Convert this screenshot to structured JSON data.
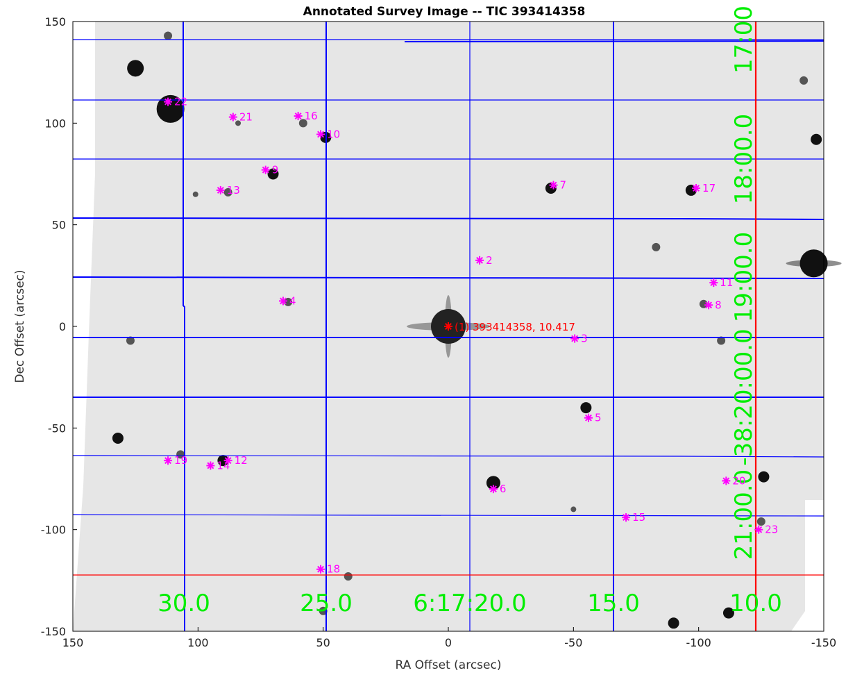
{
  "chart_data": {
    "type": "scatter",
    "title": "Annotated Survey Image -- TIC 393414358",
    "xlabel": "RA Offset (arcsec)",
    "ylabel": "Dec Offset (arcsec)",
    "xlim": [
      150,
      -150
    ],
    "ylim": [
      -150,
      150
    ],
    "x_ticks": [
      150,
      100,
      50,
      0,
      -50,
      -100,
      -150
    ],
    "x_tick_labels": [
      "150",
      "100",
      "50",
      "0",
      "-50",
      "-100",
      "-150"
    ],
    "y_ticks": [
      150,
      100,
      50,
      0,
      -50,
      -100,
      -150
    ],
    "y_tick_labels": [
      "150",
      "100",
      "50",
      "0",
      "-50",
      "-100",
      "-150"
    ],
    "grid": "RA/Dec coordinate grid overlay",
    "background": "grayscale survey image",
    "colors": {
      "target": "#ff0000",
      "neighbors": "#ff00ff",
      "grid_lines": "#0000ff",
      "grid_labels": "#00ee00",
      "reference_lines": "#ff0000"
    },
    "target": {
      "x": 0,
      "y": 0,
      "label": "(1) 393414358, 10.417"
    },
    "sources": [
      {
        "label": "2",
        "x": -12.5,
        "y": 32.5
      },
      {
        "label": "3",
        "x": -50.5,
        "y": -6
      },
      {
        "label": "4",
        "x": 66,
        "y": 12.5
      },
      {
        "label": "5",
        "x": -56,
        "y": -45
      },
      {
        "label": "6",
        "x": -18,
        "y": -80
      },
      {
        "label": "7",
        "x": -42,
        "y": 69.5
      },
      {
        "label": "8",
        "x": -104,
        "y": 10.5
      },
      {
        "label": "9",
        "x": 73,
        "y": 77
      },
      {
        "label": "10",
        "x": 51,
        "y": 94.5
      },
      {
        "label": "11",
        "x": -106,
        "y": 21.5
      },
      {
        "label": "12",
        "x": 88,
        "y": -66
      },
      {
        "label": "13",
        "x": 91,
        "y": 67
      },
      {
        "label": "14",
        "x": 95,
        "y": -68.5
      },
      {
        "label": "15",
        "x": -71,
        "y": -94
      },
      {
        "label": "16",
        "x": 60,
        "y": 103.5
      },
      {
        "label": "17",
        "x": -99,
        "y": 68
      },
      {
        "label": "18",
        "x": 51,
        "y": -119.5
      },
      {
        "label": "19",
        "x": 112,
        "y": -66
      },
      {
        "label": "20",
        "x": -111,
        "y": -76
      },
      {
        "label": "21",
        "x": 86,
        "y": 103
      },
      {
        "label": "22",
        "x": 112,
        "y": 110.5
      },
      {
        "label": "23",
        "x": -124,
        "y": -100
      }
    ],
    "background_stars": [
      {
        "x": 0,
        "y": 0,
        "r": 11
      },
      {
        "x": -146,
        "y": 31,
        "r": 10
      },
      {
        "x": 111,
        "y": 107,
        "r": 10
      },
      {
        "x": 125,
        "y": 127,
        "r": 6
      },
      {
        "x": -147,
        "y": 92,
        "r": 4
      },
      {
        "x": 132,
        "y": -55,
        "r": 4
      },
      {
        "x": -126,
        "y": -74,
        "r": 4
      },
      {
        "x": -112,
        "y": -141,
        "r": 4
      },
      {
        "x": -90,
        "y": -146,
        "r": 4
      },
      {
        "x": -18,
        "y": -77,
        "r": 5
      },
      {
        "x": 70,
        "y": 75,
        "r": 4
      },
      {
        "x": 49,
        "y": 93,
        "r": 4
      },
      {
        "x": -41,
        "y": 68,
        "r": 4
      },
      {
        "x": -97,
        "y": 67,
        "r": 4
      },
      {
        "x": 90,
        "y": -66,
        "r": 4
      },
      {
        "x": -55,
        "y": -40,
        "r": 4
      },
      {
        "x": -102,
        "y": 11,
        "r": 3
      },
      {
        "x": -109,
        "y": -7,
        "r": 3
      },
      {
        "x": 127,
        "y": -7,
        "r": 3
      },
      {
        "x": 107,
        "y": -63,
        "r": 3
      },
      {
        "x": 50,
        "y": -140,
        "r": 3
      },
      {
        "x": 88,
        "y": 66,
        "r": 3
      },
      {
        "x": 58,
        "y": 100,
        "r": 3
      },
      {
        "x": 64,
        "y": 12,
        "r": 3
      },
      {
        "x": 40,
        "y": -123,
        "r": 3
      },
      {
        "x": -125,
        "y": -96,
        "r": 3
      },
      {
        "x": 112,
        "y": 143,
        "r": 3
      },
      {
        "x": -142,
        "y": 121,
        "r": 3
      },
      {
        "x": 101,
        "y": 65,
        "r": 2
      },
      {
        "x": 84,
        "y": 100,
        "r": 2
      },
      {
        "x": -83,
        "y": 39,
        "r": 3
      },
      {
        "x": -50,
        "y": -90,
        "r": 2
      }
    ],
    "coordinate_labels_ra": [
      "30.0",
      "25.0",
      "6:17:20.0",
      "15.0",
      "10.0"
    ],
    "coordinate_labels_dec": [
      "17:00",
      "18:00.0",
      "19:00.0",
      "-38:20:00.0",
      "21:00.0"
    ]
  }
}
